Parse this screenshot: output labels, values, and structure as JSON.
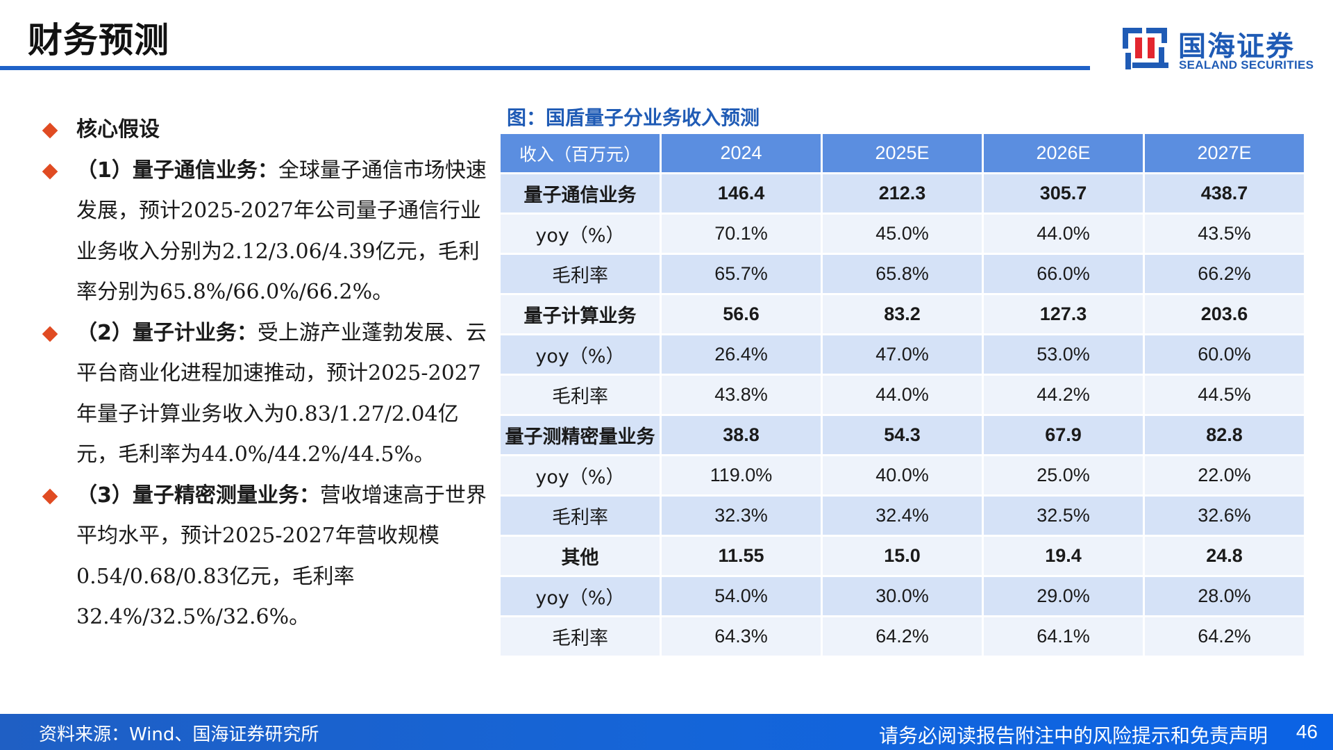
{
  "header": {
    "title": "财务预测",
    "logo": {
      "cn": "国海证券",
      "en": "SEALAND SECURITIES"
    }
  },
  "bullets": [
    {
      "lead": "核心假设",
      "body": ""
    },
    {
      "lead": "（1）量子通信业务：",
      "body": "全球量子通信市场快速发展，预计2025-2027年公司量子通信行业业务收入分别为2.12/3.06/4.39亿元，毛利率分别为65.8%/66.0%/66.2%。"
    },
    {
      "lead": "（2）量子计业务：",
      "body": "受上游产业蓬勃发展、云平台商业化进程加速推动，预计2025-2027年量子计算业务收入为0.83/1.27/2.04亿元，毛利率为44.0%/44.2%/44.5%。"
    },
    {
      "lead": "（3）量子精密测量业务：",
      "body": "营收增速高于世界平均水平，预计2025-2027年营收规模0.54/0.68/0.83亿元，毛利率32.4%/32.5%/32.6%。"
    }
  ],
  "chart_data": {
    "type": "table",
    "title": "图：国盾量子分业务收入预测",
    "columns": [
      "收入（百万元）",
      "2024",
      "2025E",
      "2026E",
      "2027E"
    ],
    "rows": [
      {
        "label": "量子通信业务",
        "values": [
          "146.4",
          "212.3",
          "305.7",
          "438.7"
        ]
      },
      {
        "label": "yoy（%）",
        "values": [
          "70.1%",
          "45.0%",
          "44.0%",
          "43.5%"
        ]
      },
      {
        "label": "毛利率",
        "values": [
          "65.7%",
          "65.8%",
          "66.0%",
          "66.2%"
        ]
      },
      {
        "label": "量子计算业务",
        "values": [
          "56.6",
          "83.2",
          "127.3",
          "203.6"
        ]
      },
      {
        "label": "yoy（%）",
        "values": [
          "26.4%",
          "47.0%",
          "53.0%",
          "60.0%"
        ]
      },
      {
        "label": "毛利率",
        "values": [
          "43.8%",
          "44.0%",
          "44.2%",
          "44.5%"
        ]
      },
      {
        "label": "量子测精密量业务",
        "values": [
          "38.8",
          "54.3",
          "67.9",
          "82.8"
        ]
      },
      {
        "label": "yoy（%）",
        "values": [
          "119.0%",
          "40.0%",
          "25.0%",
          "22.0%"
        ]
      },
      {
        "label": "毛利率",
        "values": [
          "32.3%",
          "32.4%",
          "32.5%",
          "32.6%"
        ]
      },
      {
        "label": "其他",
        "values": [
          "11.55",
          "15.0",
          "19.4",
          "24.8"
        ]
      },
      {
        "label": "yoy（%）",
        "values": [
          "54.0%",
          "30.0%",
          "29.0%",
          "28.0%"
        ]
      },
      {
        "label": "毛利率",
        "values": [
          "64.3%",
          "64.2%",
          "64.1%",
          "64.2%"
        ]
      }
    ]
  },
  "footer": {
    "source": "资料来源：Wind、国海证券研究所",
    "disclaimer": "请务必阅读报告附注中的风险提示和免责声明",
    "page": "46"
  },
  "colors": {
    "brand_blue": "#1f5bb5",
    "header_cell": "#5b8ee0",
    "row_shade": "#d5e2f7",
    "row_plain": "#eef3fb",
    "bullet_diamond": "#e04b22"
  }
}
